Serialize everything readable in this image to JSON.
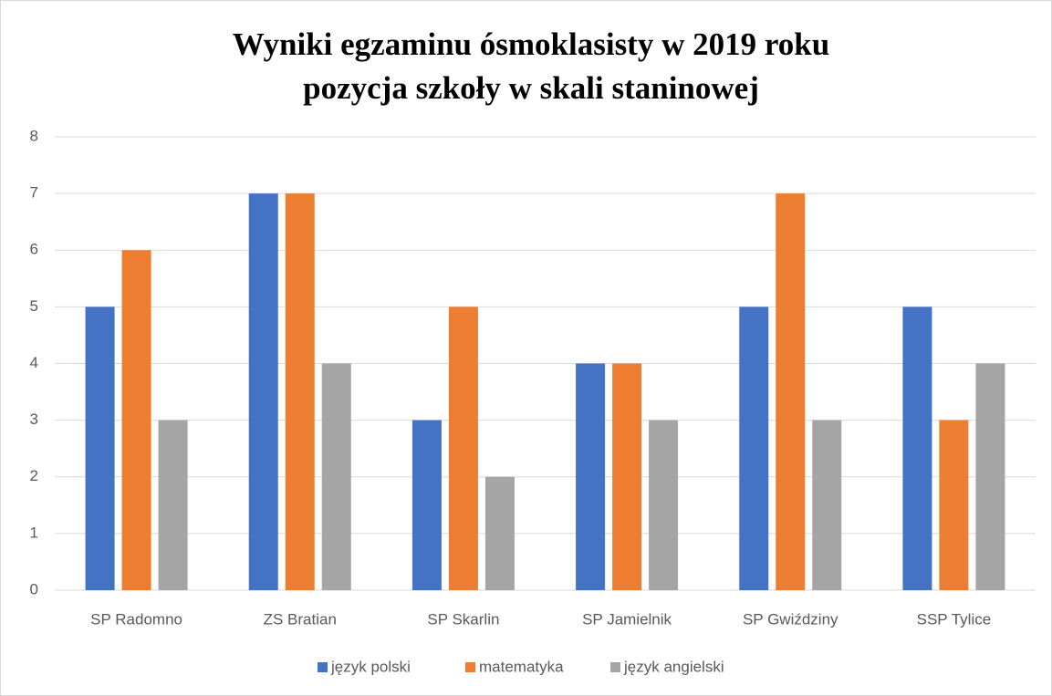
{
  "chart_data": {
    "type": "bar",
    "title": [
      "Wyniki egzaminu ósmoklasisty w 2019 roku",
      "pozycja szkoły w skali staninowej"
    ],
    "categories": [
      "SP Radomno",
      "ZS Bratian",
      "SP Skarlin",
      "SP Jamielnik",
      "SP Gwiździny",
      "SSP Tylice"
    ],
    "series": [
      {
        "name": "język polski",
        "color": "#4472c4",
        "values": [
          5,
          7,
          3,
          4,
          5,
          5
        ]
      },
      {
        "name": "matematyka",
        "color": "#ed7d31",
        "values": [
          6,
          7,
          5,
          4,
          7,
          3
        ]
      },
      {
        "name": "język angielski",
        "color": "#a5a5a5",
        "values": [
          3,
          4,
          2,
          3,
          3,
          4
        ]
      }
    ],
    "ylim": [
      0,
      8
    ],
    "yticks": [
      0,
      1,
      2,
      3,
      4,
      5,
      6,
      7,
      8
    ],
    "grid": true,
    "legend": "bottom"
  }
}
